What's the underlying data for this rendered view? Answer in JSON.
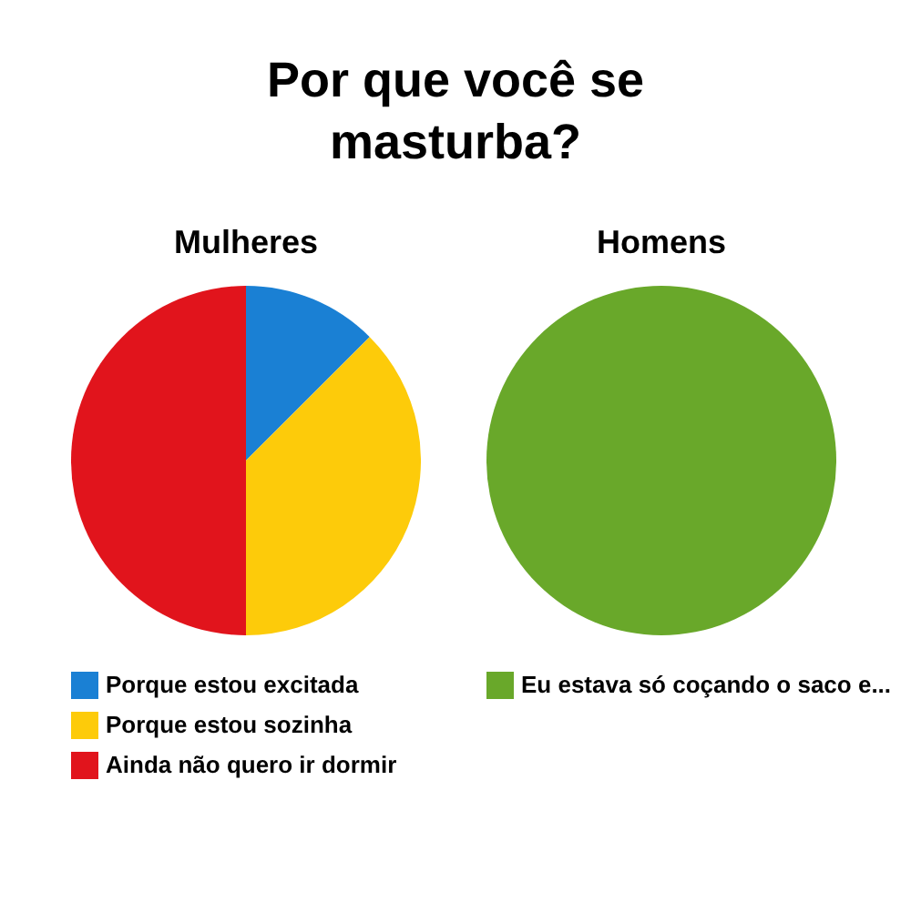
{
  "chart_data": [
    {
      "type": "other",
      "title": "Por que você se masturba?"
    },
    {
      "type": "pie",
      "title": "Mulheres",
      "categories": [
        "Porque estou excitada",
        "Porque estou sozinha",
        "Ainda não quero ir dormir"
      ],
      "values": [
        12.5,
        37.5,
        50
      ],
      "colors": [
        "#1a80d4",
        "#fdcb0a",
        "#e1141c"
      ],
      "legend": "bottom"
    },
    {
      "type": "pie",
      "title": "Homens",
      "categories": [
        "Eu estava só coçando o saco e..."
      ],
      "values": [
        100
      ],
      "colors": [
        "#69a82a"
      ],
      "legend": "bottom"
    }
  ]
}
